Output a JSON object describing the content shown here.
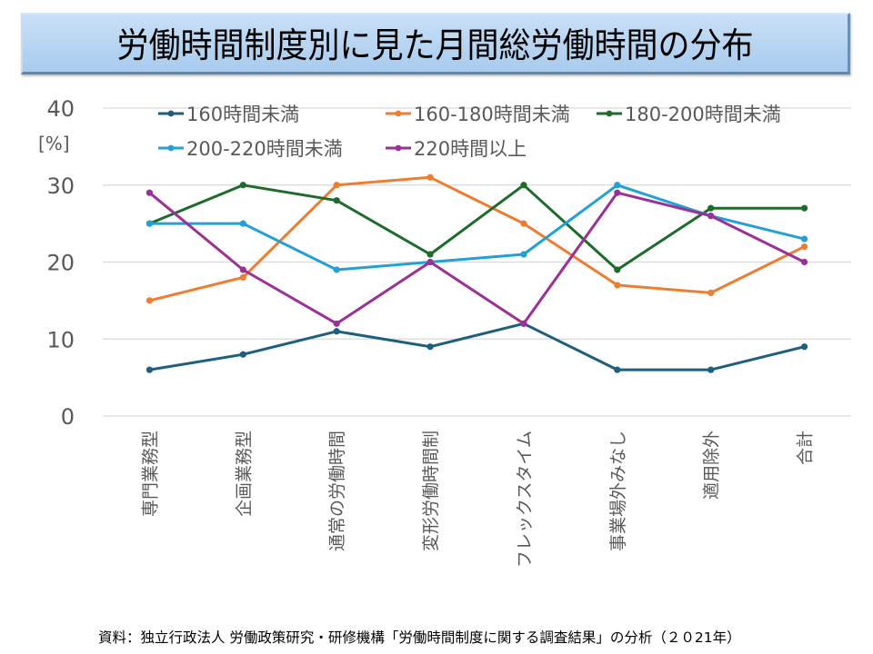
{
  "title": "労働時間制度別に見た月間総労働時間の分布",
  "source": "資料：独立行政法人 労働政策研究・研修機構「労働時間制度に関する調査結果」の分析（２０21年）",
  "chart_data": {
    "type": "line",
    "title": "労働時間制度別に見た月間総労働時間の分布",
    "xlabel": "",
    "ylabel": "[%]",
    "ylim": [
      0,
      40
    ],
    "yticks": [
      0,
      10,
      20,
      30,
      40
    ],
    "ytick_labels": [
      "0",
      "10",
      "20",
      "30",
      "40"
    ],
    "grid": true,
    "legend_position": "top",
    "categories": [
      "専門業務型",
      "企画業務型",
      "通常の労働時間",
      "変形労働時間制",
      "フレックスタイム",
      "事業場外みなし",
      "適用除外",
      "合計"
    ],
    "series": [
      {
        "name": "160時間未満",
        "color": "#1f5f7e",
        "values": [
          6,
          8,
          11,
          9,
          12,
          6,
          6,
          9
        ]
      },
      {
        "name": "160-180時間未満",
        "color": "#ed7d31",
        "values": [
          15,
          18,
          30,
          31,
          25,
          17,
          16,
          22
        ]
      },
      {
        "name": "180-200時間未満",
        "color": "#1e6b2b",
        "values": [
          25,
          30,
          28,
          21,
          30,
          19,
          27,
          27
        ]
      },
      {
        "name": "200-220時間未満",
        "color": "#23a0d4",
        "values": [
          25,
          25,
          19,
          20,
          21,
          30,
          26,
          23
        ]
      },
      {
        "name": "220時間以上",
        "color": "#9b3096",
        "values": [
          29,
          19,
          12,
          20,
          12,
          29,
          26,
          20
        ]
      }
    ]
  }
}
